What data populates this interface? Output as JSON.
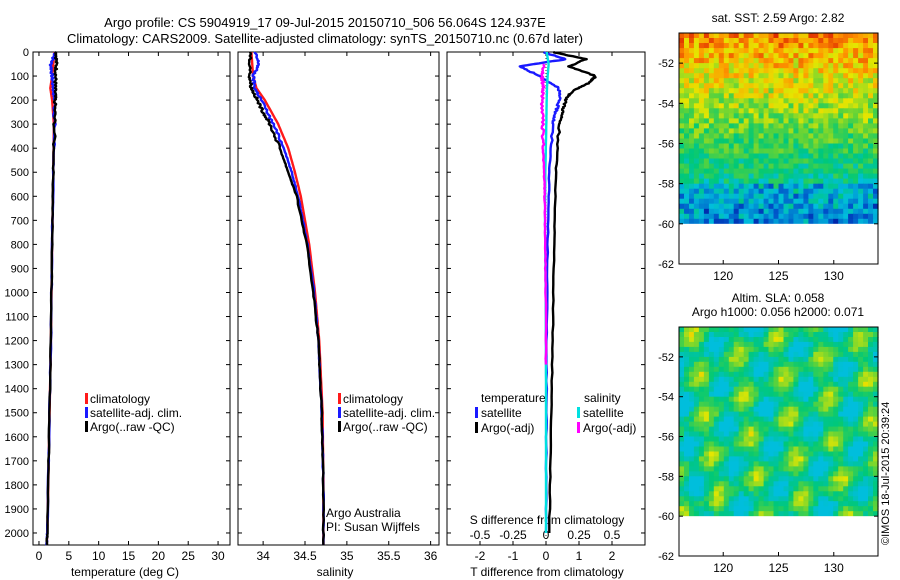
{
  "header": {
    "title1": "Argo profile: CS 5904919_17 09-Jul-2015 20150710_506 56.064S 124.937E",
    "title2": "Climatology: CARS2009. Satellite-adjusted climatology: synTS_20150710.nc (0.67d later)"
  },
  "watermark": "©IMOS 18-Jul-2015 20:39:24",
  "colors": {
    "red": "#ff1a1a",
    "blue": "#1a1aff",
    "black": "#000000",
    "cyan": "#00e0e0",
    "magenta": "#ff00ff"
  },
  "chart_data": [
    {
      "type": "line",
      "xlabel": "temperature (deg C)",
      "ylim": [
        2050,
        0
      ],
      "xlim": [
        -1,
        32
      ],
      "xticks": [
        0,
        5,
        10,
        15,
        20,
        25,
        30
      ],
      "yticks": [
        0,
        100,
        200,
        300,
        400,
        500,
        600,
        700,
        800,
        900,
        1000,
        1100,
        1200,
        1300,
        1400,
        1500,
        1600,
        1700,
        1800,
        1900,
        2000
      ],
      "legend": [
        "climatology",
        "satellite-adj. clim.",
        "Argo(..raw -QC)"
      ],
      "series": [
        {
          "name": "climatology",
          "color": "red",
          "depth": [
            0,
            50,
            100,
            150,
            200,
            300,
            500,
            800,
            1200,
            1600,
            2000,
            2050
          ],
          "values": [
            2.6,
            2.4,
            2.2,
            1.9,
            2.2,
            2.5,
            2.4,
            2.2,
            2.0,
            1.7,
            1.4,
            1.3
          ]
        },
        {
          "name": "satellite-adj. clim.",
          "color": "blue",
          "depth": [
            0,
            50,
            100,
            150,
            200,
            300,
            500,
            800,
            1200,
            1600,
            2000,
            2050
          ],
          "values": [
            2.8,
            2.0,
            2.2,
            2.4,
            2.6,
            2.6,
            2.4,
            2.2,
            2.0,
            1.7,
            1.4,
            1.3
          ]
        },
        {
          "name": "Argo(..raw -QC)",
          "color": "black",
          "depth": [
            0,
            50,
            100,
            150,
            200,
            300,
            500,
            800,
            1200,
            1600,
            2000,
            2050
          ],
          "values": [
            2.9,
            2.9,
            2.8,
            2.7,
            2.7,
            2.6,
            2.4,
            2.2,
            2.0,
            1.7,
            1.4,
            1.3
          ]
        }
      ]
    },
    {
      "type": "line",
      "xlabel": "salinity",
      "ylim": [
        2050,
        0
      ],
      "xlim": [
        33.7,
        36.1
      ],
      "xticks": [
        34,
        34.5,
        35,
        35.5,
        36
      ],
      "legend": [
        "climatology",
        "satellite-adj. clim.",
        "Argo(..raw -QC)"
      ],
      "annotation1": "Argo Australia",
      "annotation2": "PI: Susan Wijffels",
      "series": [
        {
          "name": "climatology",
          "color": "red",
          "depth": [
            0,
            100,
            150,
            200,
            300,
            400,
            500,
            600,
            800,
            1000,
            1200,
            1500,
            1800,
            2050
          ],
          "values": [
            33.86,
            33.88,
            33.92,
            34.02,
            34.18,
            34.3,
            34.38,
            34.45,
            34.55,
            34.62,
            34.67,
            34.71,
            34.72,
            34.72
          ]
        },
        {
          "name": "satellite-adj. clim.",
          "color": "blue",
          "depth": [
            0,
            50,
            100,
            150,
            200,
            300,
            400,
            500,
            600,
            800,
            1000,
            1200,
            1500,
            1800,
            2050
          ],
          "values": [
            33.9,
            33.95,
            33.88,
            33.9,
            33.98,
            34.12,
            34.25,
            34.34,
            34.42,
            34.53,
            34.61,
            34.66,
            34.7,
            34.72,
            34.72
          ]
        },
        {
          "name": "Argo(..raw -QC)",
          "color": "black",
          "depth": [
            0,
            100,
            150,
            200,
            250,
            300,
            400,
            500,
            600,
            800,
            1000,
            1200,
            1500,
            1800,
            2050
          ],
          "values": [
            33.85,
            33.84,
            33.86,
            33.93,
            34.0,
            34.08,
            34.2,
            34.3,
            34.4,
            34.52,
            34.6,
            34.66,
            34.7,
            34.72,
            34.72
          ]
        }
      ]
    },
    {
      "type": "line",
      "xlabel": "T difference from climatology",
      "x2label": "S difference from climatology",
      "ylim": [
        2050,
        0
      ],
      "xlim": [
        -3,
        3
      ],
      "xticks": [
        -2,
        -1,
        0,
        1,
        2
      ],
      "x2lim": [
        -0.75,
        0.75
      ],
      "x2ticks": [
        -0.5,
        -0.25,
        0,
        0.25,
        0.5
      ],
      "legend_temperature": "temperature",
      "legend_salinity": "salinity",
      "legend_items": {
        "t_sat": "satellite",
        "t_argo": "Argo(-adj)",
        "s_sat": "satellite",
        "s_argo": "Argo(-adj)"
      },
      "series": [
        {
          "name": "temperature satellite",
          "color": "blue",
          "depth": [
            0,
            30,
            60,
            100,
            150,
            200,
            250,
            300,
            500,
            800,
            1200,
            1600,
            2000
          ],
          "values": [
            -0.1,
            0.6,
            -0.8,
            -0.2,
            0.4,
            0.4,
            0.3,
            0.2,
            0.1,
            0.05,
            0.02,
            0.01,
            0.0
          ]
        },
        {
          "name": "temperature Argo(-adj)",
          "color": "black",
          "depth": [
            0,
            30,
            60,
            100,
            130,
            160,
            200,
            250,
            300,
            500,
            800,
            1200,
            1600,
            2000
          ],
          "values": [
            0.2,
            1.2,
            0.7,
            1.5,
            1.3,
            0.8,
            0.6,
            0.5,
            0.4,
            0.3,
            0.25,
            0.2,
            0.15,
            0.1
          ]
        },
        {
          "name": "salinity satellite",
          "color": "cyan",
          "depth": [
            0,
            50,
            100,
            150,
            200,
            300,
            500,
            700,
            1000,
            1400,
            1800,
            2000
          ],
          "values": [
            0.02,
            0.08,
            0.05,
            0.03,
            0.02,
            0.01,
            -0.02,
            -0.03,
            -0.01,
            0.0,
            0.0,
            0.0
          ]
        },
        {
          "name": "salinity Argo(-adj)",
          "color": "magenta",
          "depth": [
            50,
            100,
            150,
            200,
            300,
            400,
            500,
            600,
            800,
            1000,
            1300
          ],
          "values": [
            -0.05,
            -0.12,
            -0.08,
            -0.12,
            -0.1,
            -0.09,
            -0.06,
            -0.04,
            -0.02,
            -0.01,
            0.0
          ]
        }
      ]
    },
    {
      "type": "heatmap",
      "title": "sat. SST: 2.59 Argo: 2.82",
      "xticks": [
        120,
        125,
        130
      ],
      "yticks": [
        -52,
        -54,
        -56,
        -58,
        -60,
        -62
      ]
    },
    {
      "type": "heatmap",
      "title1": "Altim. SLA: 0.058",
      "title2": "Argo h1000: 0.056 h2000: 0.071",
      "xticks": [
        120,
        125,
        130
      ],
      "yticks": [
        -52,
        -54,
        -56,
        -58,
        -60,
        -62
      ]
    }
  ]
}
